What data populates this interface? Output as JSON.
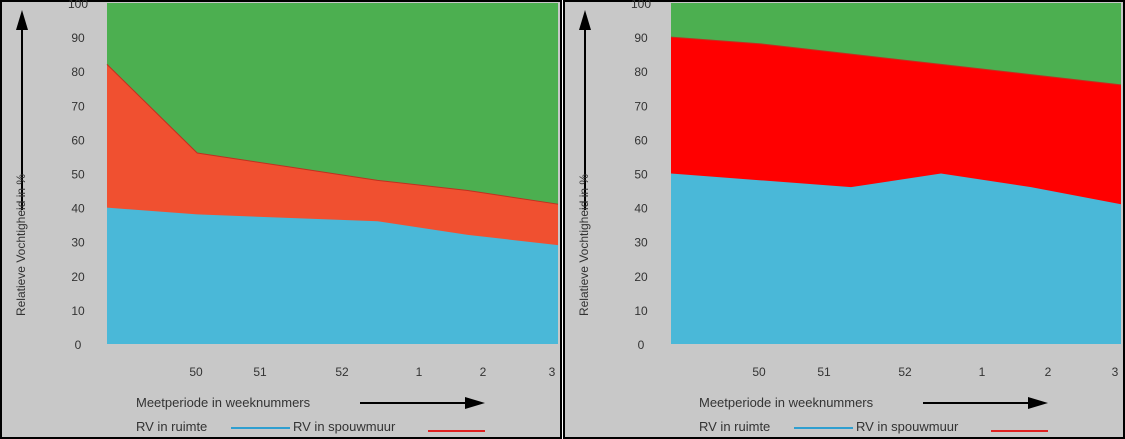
{
  "colors": {
    "panel_bg": "#c8c8c8",
    "frame": "#000000",
    "green": "#4caf50",
    "red_left": "#f05030",
    "red_right": "#ff0000",
    "blue": "#4ab8d8",
    "legend_blue": "#2f9fd0",
    "legend_red": "#e02020"
  },
  "chart_data": [
    {
      "type": "area",
      "ylabel": "Relatieve Vochtigheid in %",
      "xlabel": "Meetperiode in weeknummers",
      "yticks": [
        "0",
        "10",
        "20",
        "30",
        "40",
        "50",
        "60",
        "70",
        "80",
        "90",
        "100"
      ],
      "xticks": [
        "50",
        "51",
        "52",
        "1",
        "2",
        "3"
      ],
      "ylim": [
        0,
        100
      ],
      "x": [
        0,
        1,
        2,
        3,
        4,
        5
      ],
      "series": [
        {
          "name": "RV in ruimte",
          "values": [
            40,
            38,
            37,
            36,
            32,
            29
          ]
        },
        {
          "name": "RV in spouwmuur",
          "values": [
            82,
            56,
            52,
            48,
            45,
            41
          ]
        }
      ],
      "legend": {
        "ruimte": "RV in ruimte",
        "spouwmuur": "RV in spouwmuur"
      },
      "grid": false
    },
    {
      "type": "area",
      "ylabel": "Relatieve Vochtigheid in %",
      "xlabel": "Meetperiode in weeknummers",
      "yticks": [
        "0",
        "10",
        "20",
        "30",
        "40",
        "50",
        "60",
        "70",
        "80",
        "90",
        "100"
      ],
      "xticks": [
        "50",
        "51",
        "52",
        "1",
        "2",
        "3"
      ],
      "ylim": [
        0,
        100
      ],
      "x": [
        0,
        1,
        2,
        3,
        4,
        5
      ],
      "series": [
        {
          "name": "RV in ruimte",
          "values": [
            50,
            48,
            46,
            50,
            46,
            41
          ]
        },
        {
          "name": "RV in spouwmuur",
          "values": [
            90,
            88,
            85,
            82,
            79,
            76
          ]
        }
      ],
      "legend": {
        "ruimte": "RV in ruimte",
        "spouwmuur": "RV in spouwmuur"
      },
      "grid": false
    }
  ]
}
